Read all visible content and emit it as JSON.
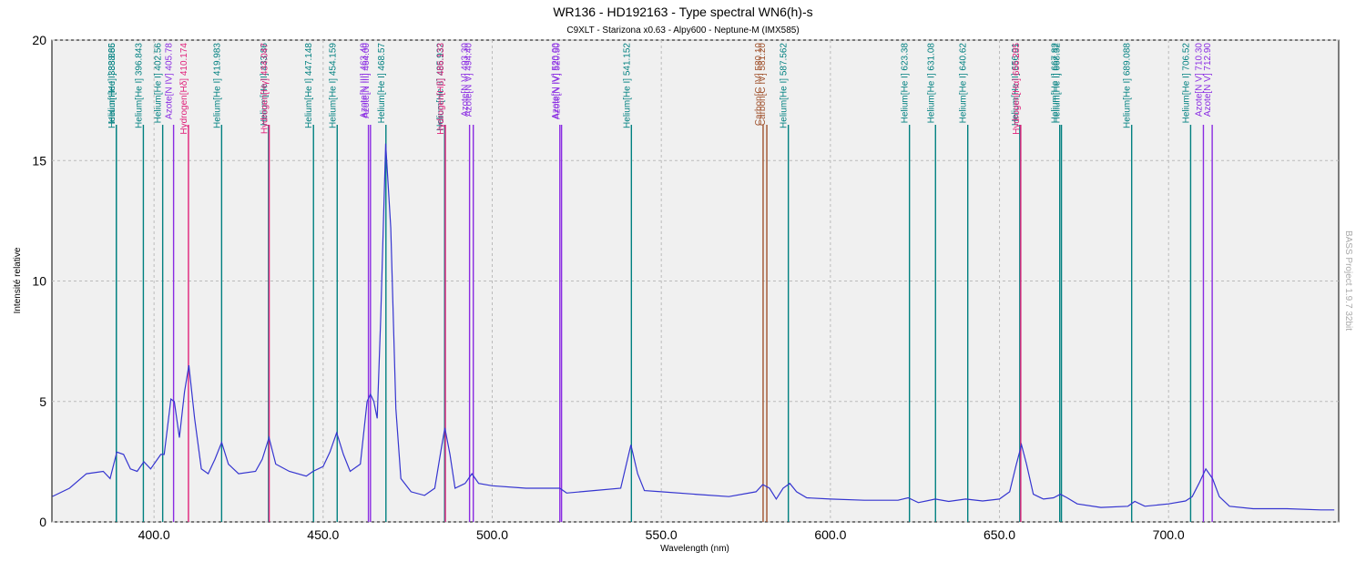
{
  "chart_data": {
    "type": "line",
    "title": "WR136 - HD192163 - Type spectral WN6(h)-s",
    "subtitle": "C9XLT - Starizona x0.63 - Alpy600 - Neptune-M (IMX585)",
    "x_label": "Wavelength (nm)",
    "y_label": "Intensité relative",
    "watermark": "BASS Project 1.9.7  32bit",
    "color": "#3535d0",
    "grid": true,
    "xlim": [
      369.8,
      750.3
    ],
    "ylim": [
      0,
      20
    ],
    "xticks": [
      {
        "value": 400,
        "label": "400.0"
      },
      {
        "value": 450,
        "label": "450.0"
      },
      {
        "value": 500,
        "label": "500.0"
      },
      {
        "value": 550,
        "label": "550.0"
      },
      {
        "value": 600,
        "label": "600.0"
      },
      {
        "value": 650,
        "label": "650.0"
      },
      {
        "value": 700,
        "label": "700.0"
      }
    ],
    "yticks": [
      0,
      5,
      10,
      15,
      20
    ],
    "x": [
      370,
      375,
      380,
      385,
      387,
      389,
      391,
      393,
      395,
      397,
      399,
      402,
      403,
      405,
      406,
      407.5,
      409,
      410.3,
      412,
      414,
      416,
      418,
      420,
      422,
      425,
      430,
      432,
      434,
      436,
      440,
      445,
      447,
      450,
      452,
      454,
      456,
      458,
      461,
      463,
      464,
      465,
      466,
      467,
      468.5,
      470,
      471.5,
      473,
      476,
      480,
      483,
      485,
      486,
      487.5,
      489,
      492,
      494,
      496,
      500,
      510,
      520,
      522,
      530,
      538,
      541,
      543,
      545,
      550,
      560,
      570,
      578,
      580,
      582,
      584,
      586,
      588,
      590,
      593,
      600,
      610,
      620,
      623,
      626,
      631,
      635,
      640,
      645,
      650,
      653,
      655,
      656.5,
      658,
      660,
      663,
      666,
      668,
      670,
      673,
      680,
      688,
      690,
      693,
      700,
      705,
      707,
      709,
      711,
      713,
      715,
      718,
      725,
      735,
      745,
      749
    ],
    "values": [
      1.06,
      1.4,
      2.0,
      2.1,
      1.8,
      2.9,
      2.8,
      2.2,
      2.1,
      2.5,
      2.2,
      2.8,
      2.8,
      5.1,
      5.0,
      3.5,
      5.4,
      6.5,
      4.3,
      2.2,
      2.0,
      2.6,
      3.3,
      2.4,
      2.0,
      2.1,
      2.6,
      3.5,
      2.4,
      2.1,
      1.9,
      2.1,
      2.3,
      2.9,
      3.7,
      2.8,
      2.1,
      2.4,
      5.0,
      5.3,
      5.0,
      4.3,
      8.4,
      15.7,
      12.2,
      4.7,
      1.8,
      1.25,
      1.1,
      1.4,
      3.1,
      3.9,
      2.8,
      1.4,
      1.6,
      2.0,
      1.6,
      1.5,
      1.4,
      1.4,
      1.2,
      1.3,
      1.4,
      3.2,
      2.0,
      1.3,
      1.25,
      1.15,
      1.05,
      1.25,
      1.55,
      1.4,
      0.95,
      1.4,
      1.6,
      1.25,
      1.0,
      0.95,
      0.9,
      0.9,
      1.0,
      0.8,
      0.95,
      0.85,
      0.95,
      0.87,
      0.95,
      1.25,
      2.4,
      3.2,
      2.4,
      1.15,
      0.95,
      1.0,
      1.15,
      1.0,
      0.75,
      0.6,
      0.65,
      0.85,
      0.65,
      0.75,
      0.87,
      1.05,
      1.6,
      2.2,
      1.8,
      1.05,
      0.65,
      0.55,
      0.55,
      0.5,
      0.5
    ],
    "spectral_lines": [
      {
        "label": "Helium[He I] 388.86",
        "x": 388.86,
        "color": "#008080"
      },
      {
        "label": "Helium[He I] 388.865",
        "x": 388.865,
        "color": "#008080"
      },
      {
        "label": "Helium[He I] 396.843",
        "x": 396.843,
        "color": "#008080"
      },
      {
        "label": "Helium[He I] 402.56",
        "x": 402.56,
        "color": "#008080"
      },
      {
        "label": "Azote[N IV] 405.78",
        "x": 405.78,
        "color": "#8a2be2"
      },
      {
        "label": "Hydrogen[Hδ] 410.174",
        "x": 410.174,
        "color": "#e0207a"
      },
      {
        "label": "Helium[He I] 419.983",
        "x": 419.983,
        "color": "#008080"
      },
      {
        "label": "Helium[He II] 433.86",
        "x": 433.86,
        "color": "#008080"
      },
      {
        "label": "Hydrogen[Hγ] 434.047",
        "x": 434.047,
        "color": "#e0207a"
      },
      {
        "label": "Helium[He I] 447.148",
        "x": 447.148,
        "color": "#008080"
      },
      {
        "label": "Helium[He I] 454.159",
        "x": 454.159,
        "color": "#008080"
      },
      {
        "label": "Azote[N III] 463.40",
        "x": 463.4,
        "color": "#8a2be2"
      },
      {
        "label": "Azote[N III] 464.00",
        "x": 464.0,
        "color": "#8a2be2"
      },
      {
        "label": "Helium[He I] 468.57",
        "x": 468.57,
        "color": "#008080"
      },
      {
        "label": "Helium[He II] 485.932",
        "x": 485.932,
        "color": "#008080"
      },
      {
        "label": "Hydrogen[Hβ] 486.133",
        "x": 486.133,
        "color": "#e0207a"
      },
      {
        "label": "Azote[N V] 493.30",
        "x": 493.3,
        "color": "#8a2be2"
      },
      {
        "label": "Azote[N V] 494.40",
        "x": 494.4,
        "color": "#8a2be2"
      },
      {
        "label": "Azote[N IV] 520.00",
        "x": 520.0,
        "color": "#8a2be2"
      },
      {
        "label": "Azote[N IV] 520.50",
        "x": 520.5,
        "color": "#8a2be2"
      },
      {
        "label": "Helium[He I] 541.152",
        "x": 541.152,
        "color": "#008080"
      },
      {
        "label": "Carbon[C IV] 580.10",
        "x": 580.1,
        "color": "#a0522d"
      },
      {
        "label": "Carbon[C IV] 581.20",
        "x": 581.2,
        "color": "#a0522d"
      },
      {
        "label": "Helium[He I] 587.562",
        "x": 587.562,
        "color": "#008080"
      },
      {
        "label": "Helium[He I] 623.38",
        "x": 623.38,
        "color": "#008080"
      },
      {
        "label": "Helium[He I] 631.08",
        "x": 631.08,
        "color": "#008080"
      },
      {
        "label": "Helium[He I] 640.62",
        "x": 640.62,
        "color": "#008080"
      },
      {
        "label": "Helium[He II] 656.01",
        "x": 656.01,
        "color": "#008080"
      },
      {
        "label": "Hydrogen[Hα] 656.285",
        "x": 656.285,
        "color": "#e0207a"
      },
      {
        "label": "Helium[He I] 667.82",
        "x": 667.82,
        "color": "#008080"
      },
      {
        "label": "Helium[He I] 668.32",
        "x": 668.32,
        "color": "#008080"
      },
      {
        "label": "Helium[He I] 689.088",
        "x": 689.088,
        "color": "#008080"
      },
      {
        "label": "Helium[He I] 706.52",
        "x": 706.52,
        "color": "#008080"
      },
      {
        "label": "Azote[N V] 710.30",
        "x": 710.3,
        "color": "#8a2be2"
      },
      {
        "label": "Azote[N V] 712.90",
        "x": 712.9,
        "color": "#8a2be2"
      }
    ]
  }
}
